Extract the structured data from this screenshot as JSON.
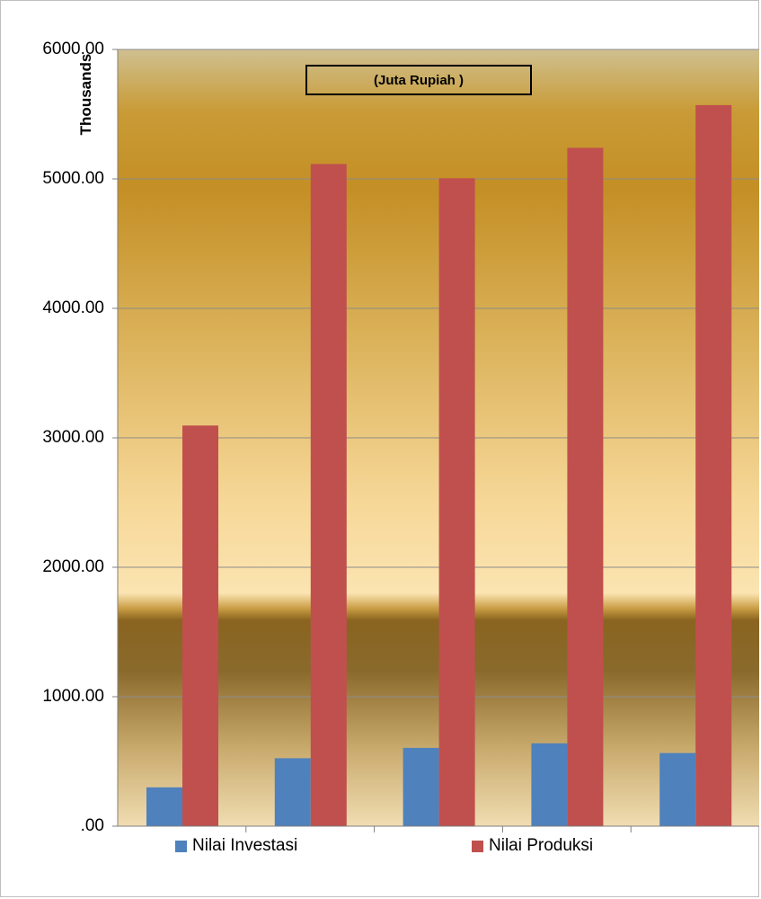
{
  "chart_data": {
    "type": "bar",
    "ylabel": "Thousands",
    "annotation": "(Juta Rupiah )",
    "categories": [
      "",
      "",
      "",
      "",
      ""
    ],
    "yticks": [
      ".00",
      "1000.00",
      "2000.00",
      "3000.00",
      "4000.00",
      "5000.00",
      "6000.00"
    ],
    "ylim": [
      0,
      6000
    ],
    "grid": true,
    "legend_position": "bottom",
    "series": [
      {
        "name": "Nilai Investasi",
        "color": "#4f81bd",
        "values": [
          300,
          525,
          605,
          640,
          565
        ]
      },
      {
        "name": "Nilai Produksi",
        "color": "#c0504d",
        "values": [
          3095,
          5115,
          5005,
          5240,
          5570
        ]
      }
    ]
  }
}
